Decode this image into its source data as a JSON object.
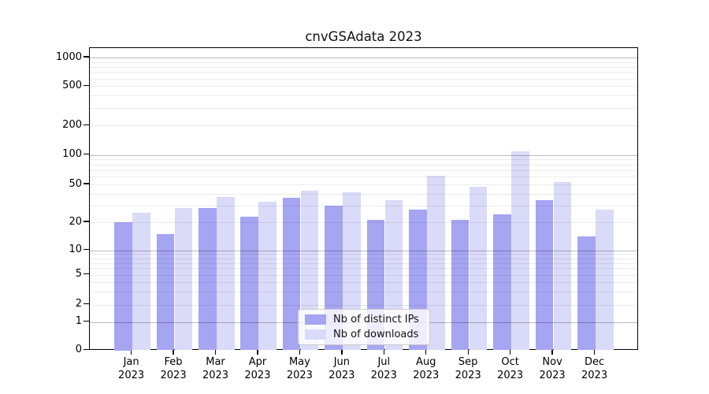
{
  "title": "cnvGSAdata 2023",
  "chart_data": {
    "type": "bar",
    "title": "cnvGSAdata 2023",
    "scale": "log y-axis (symlog with 0 baseline)",
    "categories": [
      "Jan",
      "Feb",
      "Mar",
      "Apr",
      "May",
      "Jun",
      "Jul",
      "Aug",
      "Sep",
      "Oct",
      "Nov",
      "Dec"
    ],
    "year": "2023",
    "series": [
      {
        "name": "Nb of distinct IPs",
        "color": "#a5a5f2",
        "values": [
          20,
          15,
          28,
          23,
          36,
          30,
          21,
          27,
          21,
          24,
          34,
          14
        ]
      },
      {
        "name": "Nb of downloads",
        "color": "#dadaf9",
        "values": [
          25,
          28,
          37,
          33,
          43,
          41,
          34,
          61,
          47,
          110,
          53,
          27
        ]
      }
    ],
    "yticks": [
      0,
      1,
      2,
      5,
      10,
      20,
      50,
      100,
      200,
      500,
      1000
    ],
    "ylim": [
      0,
      1200
    ],
    "grid": "horizontal minor gridlines, darker major lines at powers of 10",
    "legend_position": "lower center inside plot"
  }
}
